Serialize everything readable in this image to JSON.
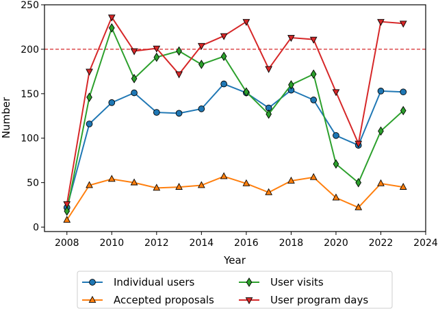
{
  "chart_data": {
    "type": "line",
    "xlabel": "Year",
    "ylabel": "Number",
    "xlim": [
      2007,
      2024
    ],
    "ylim": [
      -5,
      250
    ],
    "x_ticks": [
      "2008",
      "2010",
      "2012",
      "2014",
      "2016",
      "2018",
      "2020",
      "2022",
      "2024"
    ],
    "y_ticks": [
      "0",
      "50",
      "100",
      "150",
      "200",
      "250"
    ],
    "x": [
      2008,
      2009,
      2010,
      2011,
      2012,
      2013,
      2014,
      2015,
      2016,
      2017,
      2018,
      2019,
      2020,
      2021,
      2022,
      2023
    ],
    "reference_line": {
      "y": 200,
      "color": "#d62728",
      "style": "dashed"
    },
    "grid": false,
    "legend": {
      "placement": "bottom-outside",
      "columns": 2
    },
    "series": [
      {
        "name": "Individual users",
        "color": "#1f77b4",
        "marker": "circle",
        "values": [
          22,
          116,
          140,
          151,
          129,
          128,
          133,
          161,
          151,
          134,
          154,
          143,
          103,
          92,
          153,
          152
        ]
      },
      {
        "name": "Accepted proposals",
        "color": "#ff7f0e",
        "marker": "triangle-up",
        "values": [
          8,
          47,
          54,
          50,
          44,
          45,
          47,
          57,
          49,
          39,
          52,
          56,
          33,
          22,
          49,
          45
        ]
      },
      {
        "name": "User visits",
        "color": "#2ca02c",
        "marker": "diamond",
        "values": [
          18,
          146,
          224,
          167,
          191,
          198,
          183,
          192,
          152,
          127,
          160,
          172,
          71,
          50,
          108,
          131
        ]
      },
      {
        "name": "User program days",
        "color": "#d62728",
        "marker": "triangle-down",
        "values": [
          26,
          175,
          236,
          198,
          201,
          172,
          204,
          215,
          231,
          178,
          213,
          211,
          152,
          94,
          231,
          229
        ]
      }
    ]
  }
}
